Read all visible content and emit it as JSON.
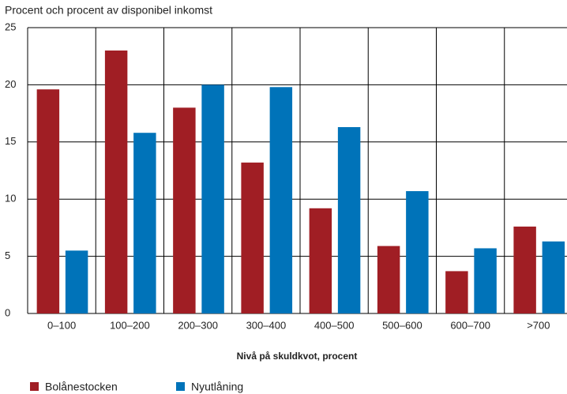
{
  "chart_data": {
    "type": "bar",
    "subtitle": "Procent och procent av disponibel inkomst",
    "x_label": "Nivå på skuldkvot, procent",
    "categories": [
      "0–100",
      "100–200",
      "200–300",
      "300–400",
      "400–500",
      "500–600",
      "600–700",
      ">700"
    ],
    "series": [
      {
        "name": "Bolånestocken",
        "color": "#a01e24",
        "values": [
          19.6,
          23.0,
          18.0,
          13.2,
          9.2,
          5.9,
          3.7,
          7.6
        ]
      },
      {
        "name": "Nyutlåning",
        "color": "#0073b9",
        "values": [
          5.5,
          15.8,
          20.0,
          19.8,
          16.3,
          10.7,
          5.7,
          6.3
        ]
      }
    ],
    "ylim": [
      0,
      25
    ],
    "yticks": [
      0,
      5,
      10,
      15,
      20,
      25
    ],
    "grid": true
  }
}
